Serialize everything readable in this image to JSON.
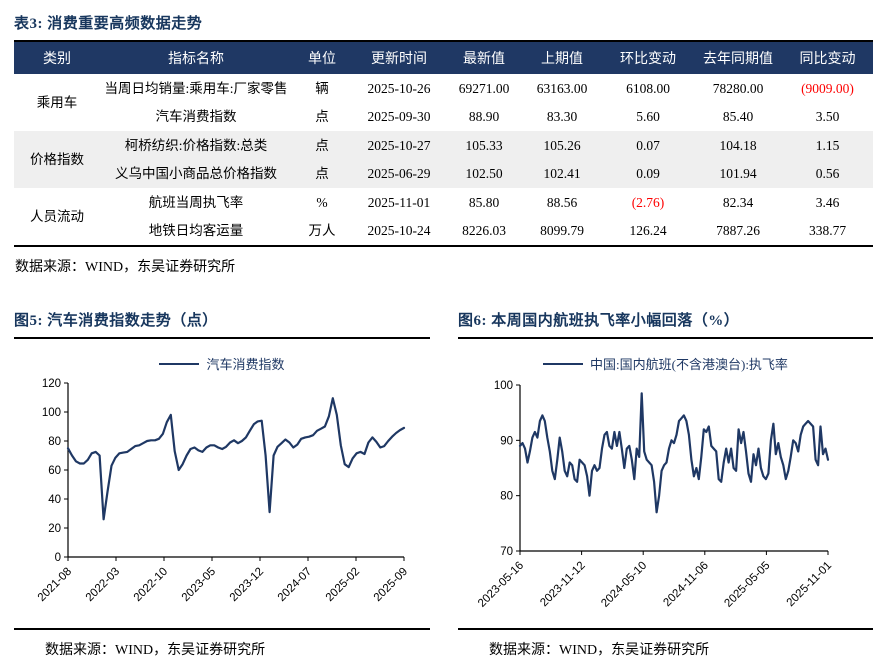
{
  "colors": {
    "navy": "#1F3864",
    "title_navy": "#17365D",
    "header_text": "#FFFFFF",
    "stripe_gray": "#EFEFEF",
    "negative_red": "#FE0000",
    "line_navy": "#1F3864",
    "rule_black": "#000000"
  },
  "table": {
    "title": "表3:  消费重要高频数据走势",
    "headers": [
      "类别",
      "指标名称",
      "单位",
      "更新时间",
      "最新值",
      "上期值",
      "环比变动",
      "去年同期值",
      "同比变动"
    ],
    "rows": [
      {
        "category": "乘用车",
        "name": "当周日均销量:乘用车:厂家零售",
        "unit": "辆",
        "date": "2025-10-26",
        "latest": "69271.00",
        "prev": "63163.00",
        "mom": "6108.00",
        "lastyear": "78280.00",
        "yoy": "(9009.00)"
      },
      {
        "name": "汽车消费指数",
        "unit": "点",
        "date": "2025-09-30",
        "latest": "88.90",
        "prev": "83.30",
        "mom": "5.60",
        "lastyear": "85.40",
        "yoy": "3.50"
      },
      {
        "category": "价格指数",
        "name": "柯桥纺织:价格指数:总类",
        "unit": "点",
        "date": "2025-10-27",
        "latest": "105.33",
        "prev": "105.26",
        "mom": "0.07",
        "lastyear": "104.18",
        "yoy": "1.15"
      },
      {
        "name": "义乌中国小商品总价格指数",
        "unit": "点",
        "date": "2025-06-29",
        "latest": "102.50",
        "prev": "102.41",
        "mom": "0.09",
        "lastyear": "101.94",
        "yoy": "0.56"
      },
      {
        "category": "人员流动",
        "name": "航班当周执飞率",
        "unit": "%",
        "date": "2025-11-01",
        "latest": "85.80",
        "prev": "88.56",
        "mom": "(2.76)",
        "lastyear": "82.34",
        "yoy": "3.46"
      },
      {
        "name": "地铁日均客运量",
        "unit": "万人",
        "date": "2025-10-24",
        "latest": "8226.03",
        "prev": "8099.79",
        "mom": "126.24",
        "lastyear": "7887.26",
        "yoy": "338.77"
      }
    ],
    "source": "数据来源：WIND，东吴证券研究所"
  },
  "figures": [
    {
      "title": "图5:  汽车消费指数走势（点）",
      "legend": "汽车消费指数",
      "source": "数据来源：WIND，东吴证券研究所"
    },
    {
      "title": "图6:  本周国内航班执飞率小幅回落（%）",
      "legend": "中国:国内航班(不含港澳台):执飞率",
      "source": "数据来源：WIND，东吴证券研究所"
    }
  ],
  "chart_data": [
    {
      "type": "line",
      "title": "汽车消费指数走势（点）",
      "legend_position": "top",
      "grid": false,
      "line_color": "#1F3864",
      "x_tick_labels": [
        "2021-08",
        "2022-03",
        "2022-10",
        "2023-05",
        "2023-12",
        "2024-07",
        "2025-02",
        "2025-09"
      ],
      "ylim": [
        0,
        120
      ],
      "yticks": [
        0,
        20,
        40,
        60,
        80,
        100,
        120
      ],
      "series": [
        {
          "name": "汽车消费指数",
          "values": [
            75,
            70,
            66,
            64.5,
            64.5,
            67,
            71.5,
            72.5,
            70,
            26,
            45,
            63,
            68.5,
            71.5,
            72,
            72.5,
            74.5,
            76.5,
            77,
            78.5,
            80,
            80.5,
            80.5,
            81.5,
            85,
            93,
            98,
            73,
            60,
            64,
            70,
            74.5,
            75.5,
            73.5,
            72.5,
            75.5,
            77,
            77,
            75.5,
            74.5,
            76,
            79,
            80.5,
            78.5,
            80,
            82.5,
            87,
            91.5,
            93.5,
            94,
            70,
            31,
            70,
            76,
            78.5,
            81,
            79,
            75.5,
            77.5,
            81.5,
            82.5,
            83,
            84,
            87,
            88.5,
            90,
            97,
            109.5,
            98,
            77,
            64,
            62,
            68,
            71.5,
            72.5,
            71,
            79,
            82.5,
            79.5,
            75.5,
            76.5,
            80,
            83,
            85.5,
            87.5,
            89
          ]
        }
      ]
    },
    {
      "type": "line",
      "title": "本周国内航班执飞率小幅回落（%）",
      "legend_position": "top",
      "grid": false,
      "line_color": "#1F3864",
      "x_tick_labels": [
        "2023-05-16",
        "2023-11-12",
        "2024-05-10",
        "2024-11-06",
        "2025-05-05",
        "2025-11-01"
      ],
      "ylim": [
        70,
        100
      ],
      "yticks": [
        70,
        80,
        90,
        100
      ],
      "series": [
        {
          "name": "中国:国内航班(不含港澳台):执飞率",
          "values": [
            89,
            89.5,
            88.5,
            86,
            88,
            90.5,
            91.5,
            90.5,
            93.5,
            94.5,
            93.5,
            90.5,
            88,
            84.5,
            83,
            86.5,
            90.5,
            88,
            84.5,
            83.5,
            86,
            85.5,
            83,
            82.5,
            86.5,
            86,
            85.5,
            83.5,
            80,
            84.5,
            85.5,
            84.5,
            85,
            88.5,
            91,
            91.5,
            89,
            88.5,
            91.5,
            89,
            91.5,
            88.5,
            85,
            88.5,
            89,
            86.5,
            83,
            88.5,
            87,
            98.5,
            88,
            86.5,
            86,
            85.5,
            82.5,
            77,
            80,
            84.5,
            85.5,
            86,
            88.5,
            90,
            89.5,
            91,
            93.5,
            94,
            94.5,
            93.5,
            91,
            86.5,
            83.5,
            85,
            83,
            87,
            92,
            91.5,
            92.5,
            89,
            88.5,
            88,
            83,
            82.5,
            86,
            88.5,
            86,
            88.5,
            85,
            84.5,
            92,
            89.5,
            91.5,
            88,
            84,
            82.5,
            87.5,
            85.5,
            88.5,
            85,
            83.5,
            83,
            84,
            90,
            93,
            87.5,
            89.5,
            87,
            85.5,
            83,
            84.5,
            87,
            90,
            89.5,
            88,
            91,
            92.5,
            93,
            93.5,
            93,
            92.5,
            86.5,
            85.5,
            92.5,
            87.5,
            88.5,
            86.5
          ]
        }
      ]
    }
  ]
}
